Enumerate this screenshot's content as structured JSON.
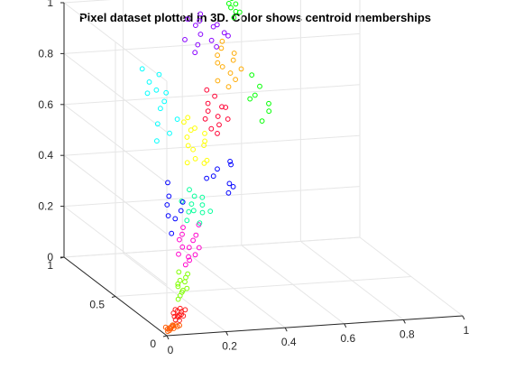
{
  "chart_data": {
    "type": "scatter",
    "title": "Pixel dataset plotted in 3D. Color shows centroid memberships",
    "xlabel": "",
    "ylabel": "",
    "zlabel": "",
    "xlim": [
      0,
      1
    ],
    "ylim": [
      0,
      1
    ],
    "zlim": [
      0,
      1
    ],
    "x_ticks": [
      "0",
      "0.2",
      "0.4",
      "0.6",
      "0.8",
      "1"
    ],
    "y_ticks": [
      "0",
      "0.5",
      "1"
    ],
    "z_ticks": [
      "0",
      "0.2",
      "0.4",
      "0.6",
      "0.8",
      "1"
    ],
    "grid": true,
    "marker": "o",
    "clusters": [
      {
        "color": "#ff5a00",
        "points": [
          [
            0.02,
            0.03,
            0.01
          ],
          [
            0.03,
            0.04,
            0.02
          ],
          [
            0.04,
            0.05,
            0.02
          ],
          [
            0.01,
            0.02,
            0.01
          ],
          [
            0.03,
            0.02,
            0.02
          ],
          [
            0.02,
            0.05,
            0.01
          ],
          [
            0.04,
            0.03,
            0.03
          ],
          [
            0.05,
            0.04,
            0.02
          ],
          [
            0.02,
            0.02,
            0.02
          ],
          [
            0.03,
            0.06,
            0.01
          ],
          [
            0.01,
            0.04,
            0.02
          ],
          [
            0.05,
            0.02,
            0.03
          ],
          [
            0.03,
            0.03,
            0.03
          ],
          [
            0.04,
            0.06,
            0.02
          ]
        ]
      },
      {
        "color": "#ff1a1a",
        "points": [
          [
            0.05,
            0.06,
            0.04
          ],
          [
            0.06,
            0.07,
            0.05
          ],
          [
            0.07,
            0.08,
            0.05
          ],
          [
            0.05,
            0.08,
            0.06
          ],
          [
            0.06,
            0.05,
            0.04
          ],
          [
            0.08,
            0.09,
            0.06
          ],
          [
            0.07,
            0.06,
            0.06
          ],
          [
            0.06,
            0.09,
            0.07
          ],
          [
            0.08,
            0.07,
            0.05
          ],
          [
            0.05,
            0.07,
            0.05
          ],
          [
            0.07,
            0.1,
            0.06
          ],
          [
            0.09,
            0.08,
            0.07
          ],
          [
            0.06,
            0.06,
            0.05
          ],
          [
            0.08,
            0.1,
            0.07
          ]
        ]
      },
      {
        "color": "#80ff00",
        "points": [
          [
            0.08,
            0.12,
            0.1
          ],
          [
            0.1,
            0.14,
            0.12
          ],
          [
            0.09,
            0.15,
            0.14
          ],
          [
            0.11,
            0.16,
            0.12
          ],
          [
            0.12,
            0.17,
            0.15
          ],
          [
            0.1,
            0.18,
            0.14
          ],
          [
            0.13,
            0.19,
            0.16
          ],
          [
            0.11,
            0.2,
            0.18
          ],
          [
            0.09,
            0.13,
            0.11
          ],
          [
            0.12,
            0.15,
            0.13
          ],
          [
            0.14,
            0.2,
            0.17
          ],
          [
            0.1,
            0.16,
            0.16
          ]
        ]
      },
      {
        "color": "#ff00cc",
        "points": [
          [
            0.14,
            0.22,
            0.2
          ],
          [
            0.16,
            0.25,
            0.22
          ],
          [
            0.15,
            0.28,
            0.25
          ],
          [
            0.18,
            0.3,
            0.24
          ],
          [
            0.13,
            0.26,
            0.23
          ],
          [
            0.2,
            0.32,
            0.26
          ],
          [
            0.17,
            0.34,
            0.28
          ],
          [
            0.19,
            0.27,
            0.22
          ],
          [
            0.22,
            0.35,
            0.27
          ],
          [
            0.15,
            0.31,
            0.27
          ],
          [
            0.21,
            0.29,
            0.24
          ],
          [
            0.18,
            0.36,
            0.3
          ],
          [
            0.24,
            0.38,
            0.3
          ],
          [
            0.16,
            0.24,
            0.21
          ]
        ]
      },
      {
        "color": "#00ff99",
        "points": [
          [
            0.2,
            0.38,
            0.32
          ],
          [
            0.22,
            0.42,
            0.34
          ],
          [
            0.25,
            0.4,
            0.3
          ],
          [
            0.24,
            0.45,
            0.36
          ],
          [
            0.27,
            0.43,
            0.33
          ],
          [
            0.21,
            0.46,
            0.37
          ],
          [
            0.26,
            0.48,
            0.38
          ],
          [
            0.23,
            0.4,
            0.35
          ],
          [
            0.28,
            0.46,
            0.35
          ],
          [
            0.3,
            0.44,
            0.33
          ],
          [
            0.25,
            0.5,
            0.4
          ],
          [
            0.29,
            0.49,
            0.37
          ]
        ]
      },
      {
        "color": "#0000ff",
        "points": [
          [
            0.12,
            0.3,
            0.3
          ],
          [
            0.15,
            0.35,
            0.34
          ],
          [
            0.14,
            0.4,
            0.38
          ],
          [
            0.18,
            0.38,
            0.36
          ],
          [
            0.16,
            0.44,
            0.4
          ],
          [
            0.2,
            0.42,
            0.38
          ],
          [
            0.17,
            0.48,
            0.44
          ],
          [
            0.13,
            0.36,
            0.35
          ],
          [
            0.35,
            0.62,
            0.4
          ],
          [
            0.4,
            0.66,
            0.42
          ],
          [
            0.42,
            0.6,
            0.38
          ],
          [
            0.45,
            0.68,
            0.44
          ],
          [
            0.38,
            0.64,
            0.4
          ],
          [
            0.44,
            0.62,
            0.36
          ],
          [
            0.46,
            0.7,
            0.42
          ],
          [
            0.41,
            0.58,
            0.35
          ]
        ]
      },
      {
        "color": "#ffff00",
        "points": [
          [
            0.25,
            0.52,
            0.5
          ],
          [
            0.28,
            0.55,
            0.54
          ],
          [
            0.3,
            0.5,
            0.5
          ],
          [
            0.27,
            0.58,
            0.58
          ],
          [
            0.32,
            0.56,
            0.55
          ],
          [
            0.29,
            0.6,
            0.6
          ],
          [
            0.26,
            0.54,
            0.56
          ],
          [
            0.31,
            0.62,
            0.6
          ],
          [
            0.33,
            0.58,
            0.56
          ],
          [
            0.28,
            0.64,
            0.62
          ],
          [
            0.3,
            0.66,
            0.63
          ],
          [
            0.34,
            0.61,
            0.58
          ],
          [
            0.27,
            0.5,
            0.52
          ],
          [
            0.32,
            0.53,
            0.5
          ]
        ]
      },
      {
        "color": "#00ffff",
        "points": [
          [
            0.14,
            0.5,
            0.6
          ],
          [
            0.16,
            0.55,
            0.65
          ],
          [
            0.18,
            0.58,
            0.7
          ],
          [
            0.2,
            0.6,
            0.72
          ],
          [
            0.15,
            0.62,
            0.75
          ],
          [
            0.17,
            0.66,
            0.78
          ],
          [
            0.22,
            0.64,
            0.74
          ],
          [
            0.19,
            0.52,
            0.62
          ],
          [
            0.21,
            0.68,
            0.8
          ],
          [
            0.16,
            0.7,
            0.82
          ],
          [
            0.23,
            0.56,
            0.66
          ],
          [
            0.18,
            0.62,
            0.76
          ]
        ]
      },
      {
        "color": "#ff0033",
        "points": [
          [
            0.38,
            0.72,
            0.6
          ],
          [
            0.4,
            0.75,
            0.62
          ],
          [
            0.42,
            0.7,
            0.58
          ],
          [
            0.41,
            0.78,
            0.64
          ],
          [
            0.43,
            0.74,
            0.6
          ],
          [
            0.45,
            0.76,
            0.63
          ],
          [
            0.39,
            0.69,
            0.57
          ],
          [
            0.44,
            0.8,
            0.66
          ],
          [
            0.46,
            0.73,
            0.59
          ],
          [
            0.42,
            0.82,
            0.68
          ],
          [
            0.47,
            0.78,
            0.62
          ],
          [
            0.4,
            0.66,
            0.56
          ]
        ]
      },
      {
        "color": "#ffaa00",
        "points": [
          [
            0.45,
            0.8,
            0.72
          ],
          [
            0.48,
            0.84,
            0.76
          ],
          [
            0.5,
            0.82,
            0.74
          ],
          [
            0.47,
            0.86,
            0.8
          ],
          [
            0.52,
            0.85,
            0.78
          ],
          [
            0.49,
            0.88,
            0.82
          ],
          [
            0.51,
            0.8,
            0.72
          ],
          [
            0.46,
            0.83,
            0.78
          ],
          [
            0.53,
            0.87,
            0.8
          ],
          [
            0.5,
            0.9,
            0.84
          ],
          [
            0.48,
            0.78,
            0.7
          ],
          [
            0.54,
            0.83,
            0.75
          ]
        ]
      },
      {
        "color": "#8800ff",
        "points": [
          [
            0.4,
            0.85,
            0.85
          ],
          [
            0.42,
            0.88,
            0.88
          ],
          [
            0.45,
            0.86,
            0.86
          ],
          [
            0.38,
            0.82,
            0.83
          ],
          [
            0.47,
            0.9,
            0.9
          ],
          [
            0.43,
            0.92,
            0.92
          ],
          [
            0.5,
            0.88,
            0.88
          ],
          [
            0.36,
            0.86,
            0.87
          ],
          [
            0.44,
            0.94,
            0.94
          ],
          [
            0.49,
            0.92,
            0.9
          ],
          [
            0.41,
            0.9,
            0.91
          ],
          [
            0.52,
            0.9,
            0.86
          ],
          [
            0.46,
            0.84,
            0.84
          ],
          [
            0.39,
            0.92,
            0.93
          ]
        ]
      },
      {
        "color": "#00ff00",
        "points": [
          [
            0.55,
            0.96,
            0.95
          ],
          [
            0.56,
            0.98,
            0.98
          ],
          [
            0.57,
            0.97,
            0.96
          ],
          [
            0.54,
            0.95,
            0.97
          ],
          [
            0.58,
            0.99,
            0.99
          ],
          [
            0.56,
            0.94,
            0.94
          ],
          [
            0.57,
            1.0,
            1.0
          ],
          [
            0.6,
            0.9,
            0.7
          ],
          [
            0.62,
            0.88,
            0.66
          ],
          [
            0.58,
            0.86,
            0.62
          ],
          [
            0.64,
            0.85,
            0.6
          ],
          [
            0.6,
            0.8,
            0.55
          ],
          [
            0.63,
            0.82,
            0.58
          ],
          [
            0.59,
            0.84,
            0.64
          ],
          [
            0.55,
            0.93,
            0.92
          ],
          [
            0.58,
            0.96,
            0.93
          ]
        ]
      }
    ]
  }
}
